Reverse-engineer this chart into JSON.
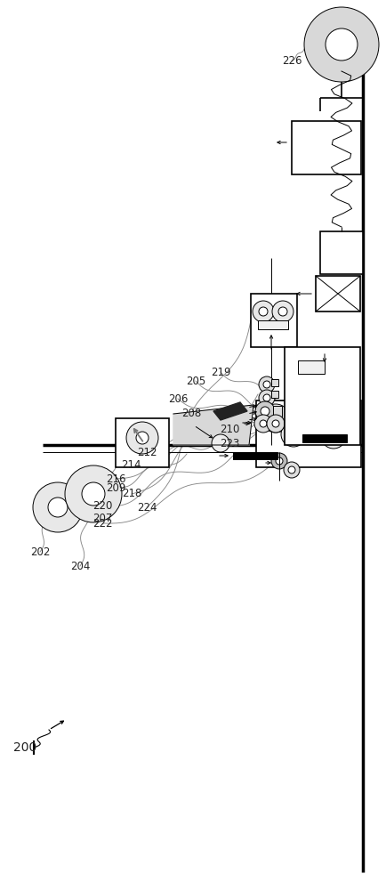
{
  "bg_color": "#ffffff",
  "line_color": "#000000",
  "lw_thin": 0.7,
  "lw_med": 1.2,
  "lw_thick": 2.5,
  "label_fontsize": 8.5,
  "label_color": "#222222",
  "leader_color": "#888888"
}
